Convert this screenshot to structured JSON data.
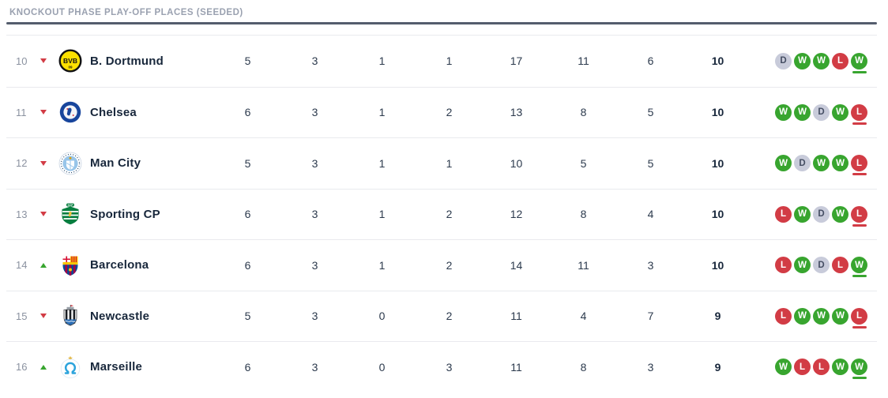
{
  "header": {
    "title": "KNOCKOUT PHASE PLAY-OFF PLACES (SEEDED)"
  },
  "colors": {
    "win": "#38a52f",
    "draw": "#c8cbda",
    "loss": "#d23c45",
    "up_arrow": "#38a52f",
    "down_arrow": "#d23c45",
    "header_bar": "#545d6d",
    "text_primary": "#18273b",
    "text_muted": "#8b92a0"
  },
  "table": {
    "rows": [
      {
        "position": "10",
        "movement": "down",
        "name": "B. Dortmund",
        "played": "5",
        "won": "3",
        "drawn": "1",
        "lost": "1",
        "goals_for": "17",
        "goals_against": "11",
        "goal_diff": "6",
        "points": "10",
        "form": [
          "D",
          "W",
          "W",
          "L",
          "W"
        ]
      },
      {
        "position": "11",
        "movement": "down",
        "name": "Chelsea",
        "played": "6",
        "won": "3",
        "drawn": "1",
        "lost": "2",
        "goals_for": "13",
        "goals_against": "8",
        "goal_diff": "5",
        "points": "10",
        "form": [
          "W",
          "W",
          "D",
          "W",
          "L"
        ]
      },
      {
        "position": "12",
        "movement": "down",
        "name": "Man City",
        "played": "5",
        "won": "3",
        "drawn": "1",
        "lost": "1",
        "goals_for": "10",
        "goals_against": "5",
        "goal_diff": "5",
        "points": "10",
        "form": [
          "W",
          "D",
          "W",
          "W",
          "L"
        ]
      },
      {
        "position": "13",
        "movement": "down",
        "name": "Sporting CP",
        "played": "6",
        "won": "3",
        "drawn": "1",
        "lost": "2",
        "goals_for": "12",
        "goals_against": "8",
        "goal_diff": "4",
        "points": "10",
        "form": [
          "L",
          "W",
          "D",
          "W",
          "L"
        ]
      },
      {
        "position": "14",
        "movement": "up",
        "name": "Barcelona",
        "played": "6",
        "won": "3",
        "drawn": "1",
        "lost": "2",
        "goals_for": "14",
        "goals_against": "11",
        "goal_diff": "3",
        "points": "10",
        "form": [
          "L",
          "W",
          "D",
          "L",
          "W"
        ]
      },
      {
        "position": "15",
        "movement": "down",
        "name": "Newcastle",
        "played": "5",
        "won": "3",
        "drawn": "0",
        "lost": "2",
        "goals_for": "11",
        "goals_against": "4",
        "goal_diff": "7",
        "points": "9",
        "form": [
          "L",
          "W",
          "W",
          "W",
          "L"
        ]
      },
      {
        "position": "16",
        "movement": "up",
        "name": "Marseille",
        "played": "6",
        "won": "3",
        "drawn": "0",
        "lost": "3",
        "goals_for": "11",
        "goals_against": "8",
        "goal_diff": "3",
        "points": "9",
        "form": [
          "W",
          "L",
          "L",
          "W",
          "W"
        ]
      }
    ]
  }
}
